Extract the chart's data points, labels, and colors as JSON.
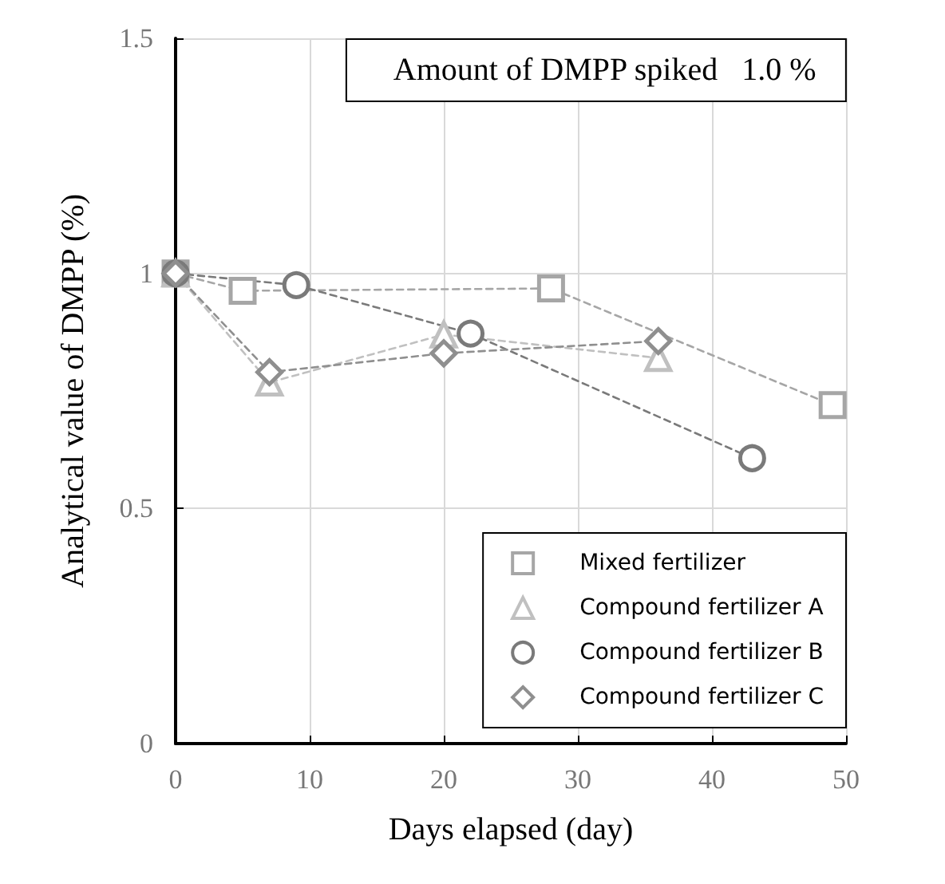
{
  "chart_data": {
    "type": "line",
    "xlabel": "Days elapsed (day)",
    "ylabel": "Analytical value of DMPP (%)",
    "annotations": [
      "Amount of DMPP spiked   1.0 %"
    ],
    "xlim": [
      0,
      50
    ],
    "xticks": [
      0,
      10,
      20,
      30,
      40,
      50
    ],
    "ylim": [
      0,
      1.5
    ],
    "yticks": [
      0,
      0.5,
      1,
      1.5
    ],
    "grid": true,
    "legend": "bottom right",
    "line_style": "dashed",
    "series": [
      {
        "name": "Mixed fertilizer",
        "color": "#a6a6a6",
        "marker": "square",
        "x": [
          0,
          5,
          28,
          49
        ],
        "values": [
          1,
          0.963,
          0.968,
          0.72
        ]
      },
      {
        "name": "Compound fertilizer A",
        "color": "#c0c0c0",
        "marker": "triangle",
        "x": [
          0,
          7,
          20,
          36
        ],
        "values": [
          1,
          0.768,
          0.87,
          0.82
        ]
      },
      {
        "name": "Compound fertilizer B",
        "color": "#7a7a7a",
        "marker": "circle",
        "x": [
          0,
          9,
          22,
          43
        ],
        "values": [
          1,
          0.975,
          0.872,
          0.607
        ]
      },
      {
        "name": "Compound fertilizer C",
        "color": "#8f8f8f",
        "marker": "diamond",
        "x": [
          0,
          7,
          20,
          36
        ],
        "values": [
          1,
          0.79,
          0.83,
          0.856
        ]
      }
    ]
  }
}
